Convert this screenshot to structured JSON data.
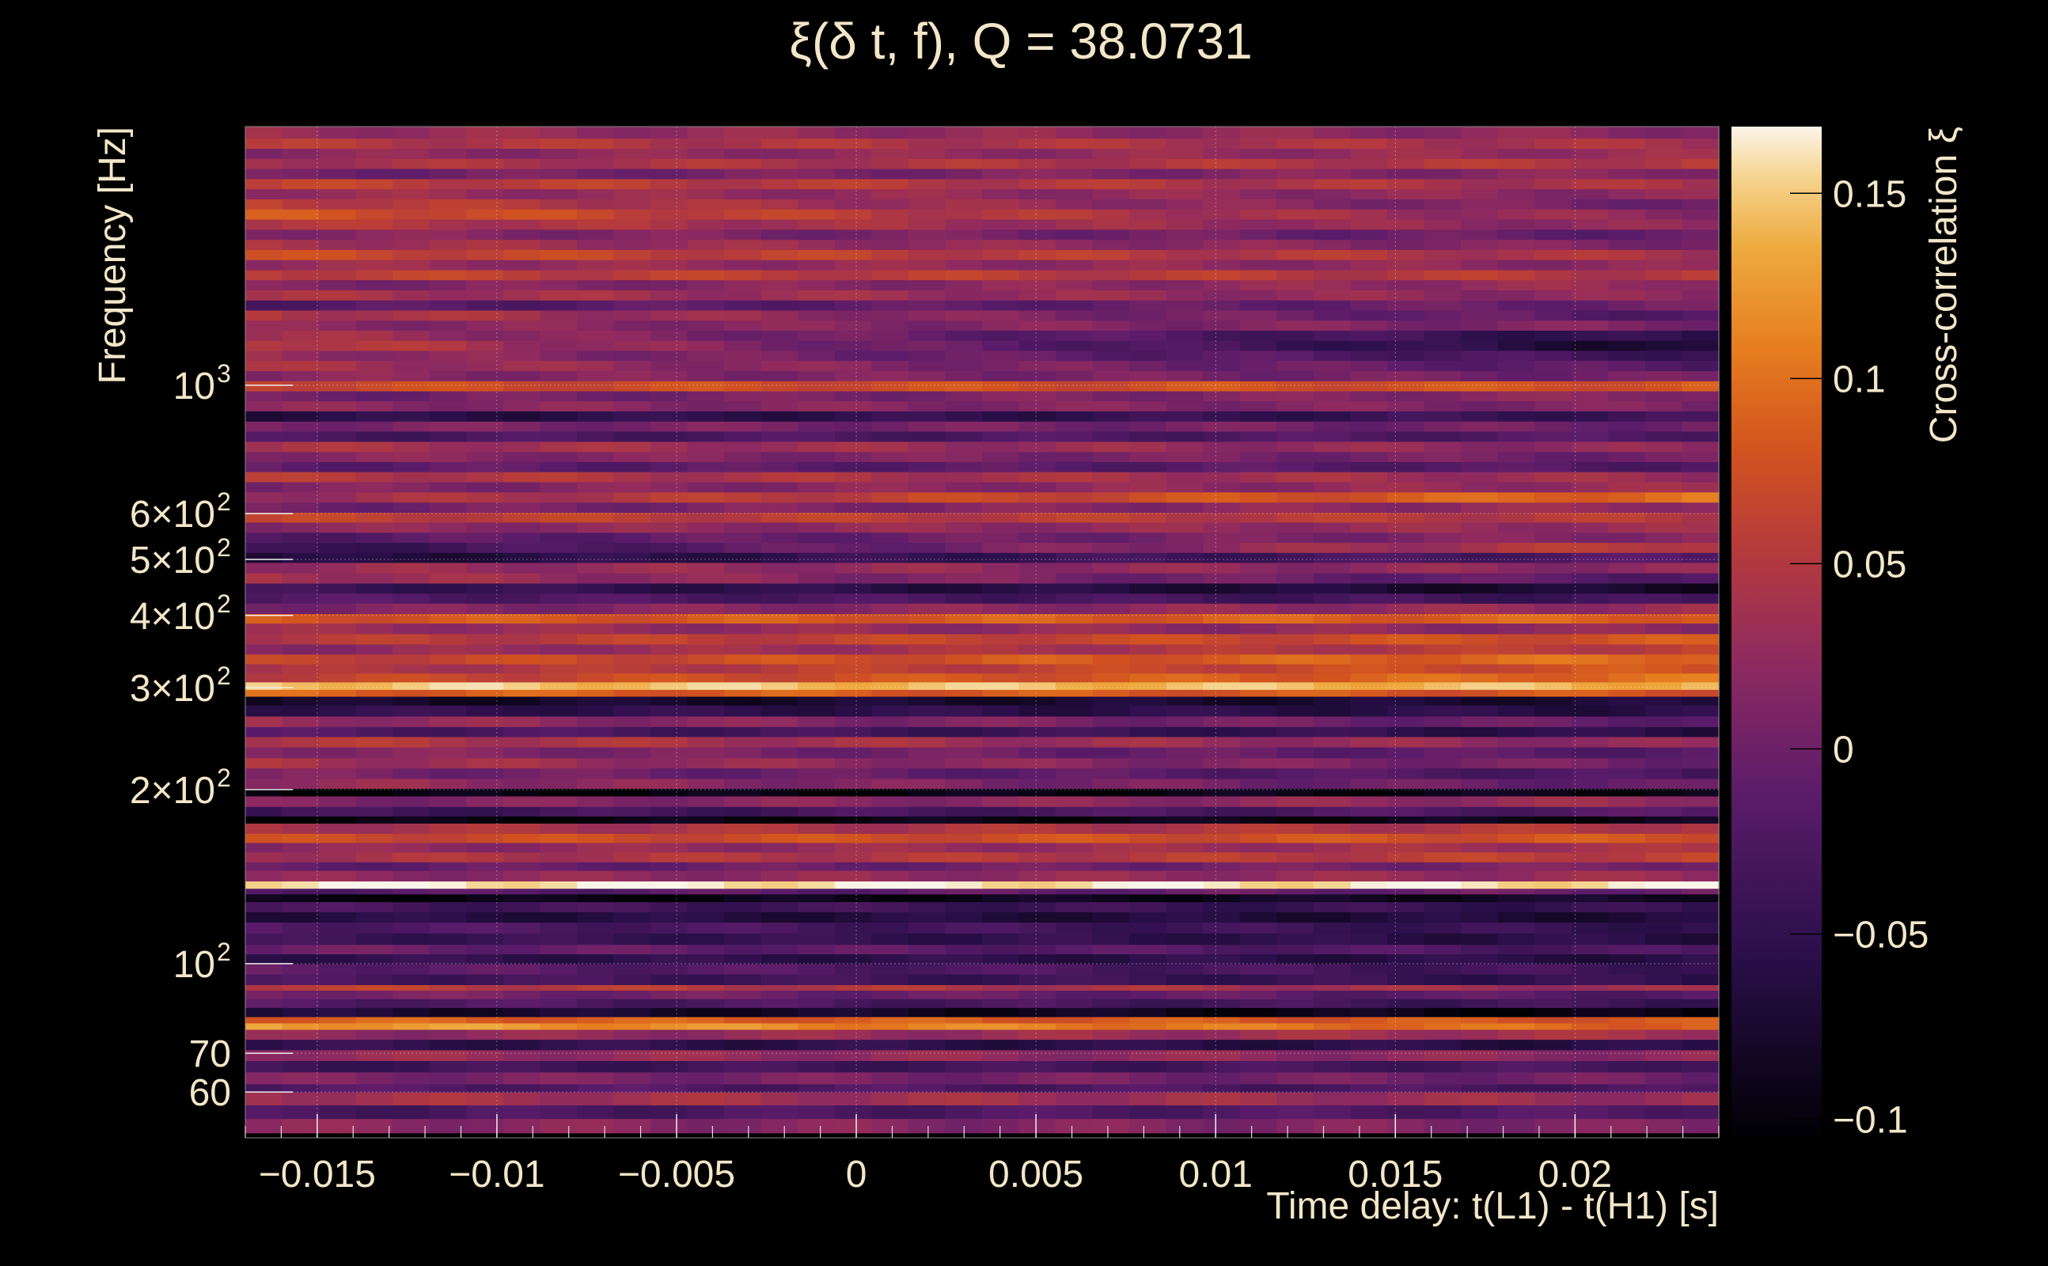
{
  "chart_data": {
    "type": "heatmap",
    "title": "ξ(δ t, f), Q = 38.0731",
    "xlabel": "Time delay: t(L1) - t(H1) [s]",
    "ylabel": "Frequency [Hz]",
    "colorbar_label": "Cross-correlation ξ",
    "xlim": [
      -0.017,
      0.024
    ],
    "ylim": [
      50,
      2800
    ],
    "y_scale": "log",
    "clim": [
      -0.105,
      0.168
    ],
    "colormap": "inferno",
    "grid": true,
    "x_ticks": [
      {
        "value": -0.015,
        "label": "−0.015"
      },
      {
        "value": -0.01,
        "label": "−0.01"
      },
      {
        "value": -0.005,
        "label": "−0.005"
      },
      {
        "value": 0,
        "label": "0"
      },
      {
        "value": 0.005,
        "label": "0.005"
      },
      {
        "value": 0.01,
        "label": "0.01"
      },
      {
        "value": 0.015,
        "label": "0.015"
      },
      {
        "value": 0.02,
        "label": "0.02"
      }
    ],
    "y_ticks": [
      {
        "value": 60,
        "base": "60",
        "exp": ""
      },
      {
        "value": 70,
        "base": "70",
        "exp": ""
      },
      {
        "value": 100,
        "base": "10",
        "exp": "2"
      },
      {
        "value": 200,
        "base": "2×10",
        "exp": "2"
      },
      {
        "value": 300,
        "base": "3×10",
        "exp": "2"
      },
      {
        "value": 400,
        "base": "4×10",
        "exp": "2"
      },
      {
        "value": 500,
        "base": "5×10",
        "exp": "2"
      },
      {
        "value": 600,
        "base": "6×10",
        "exp": "2"
      },
      {
        "value": 1000,
        "base": "10",
        "exp": "3"
      }
    ],
    "colorbar_ticks": [
      {
        "value": 0.15,
        "label": "0.15"
      },
      {
        "value": 0.1,
        "label": "0.1"
      },
      {
        "value": 0.05,
        "label": "0.05"
      },
      {
        "value": 0,
        "label": "0"
      },
      {
        "value": -0.05,
        "label": "−0.05"
      },
      {
        "value": -0.1,
        "label": "−0.1"
      }
    ],
    "bands": [
      {
        "f_low": 51,
        "f_high": 54,
        "xi_start": 0.02,
        "xi_end": 0.01
      },
      {
        "f_low": 54,
        "f_high": 57,
        "xi_start": -0.03,
        "xi_end": -0.02
      },
      {
        "f_low": 57,
        "f_high": 60,
        "xi_start": 0.04,
        "xi_end": 0.03
      },
      {
        "f_low": 60,
        "f_high": 62,
        "xi_start": -0.02,
        "xi_end": -0.03
      },
      {
        "f_low": 62,
        "f_high": 65,
        "xi_start": 0.01,
        "xi_end": 0.0
      },
      {
        "f_low": 65,
        "f_high": 68,
        "xi_start": -0.04,
        "xi_end": -0.03
      },
      {
        "f_low": 68,
        "f_high": 71,
        "xi_start": 0.03,
        "xi_end": 0.02
      },
      {
        "f_low": 71,
        "f_high": 74,
        "xi_start": -0.05,
        "xi_end": -0.06
      },
      {
        "f_low": 74,
        "f_high": 77,
        "xi_start": 0.02,
        "xi_end": 0.04
      },
      {
        "f_low": 77,
        "f_high": 79,
        "xi_start": 0.13,
        "xi_end": 0.09
      },
      {
        "f_low": 79,
        "f_high": 81,
        "xi_start": 0.09,
        "xi_end": 0.08
      },
      {
        "f_low": 81,
        "f_high": 84,
        "xi_start": -0.07,
        "xi_end": -0.1
      },
      {
        "f_low": 84,
        "f_high": 87,
        "xi_start": -0.02,
        "xi_end": -0.04
      },
      {
        "f_low": 87,
        "f_high": 90,
        "xi_start": 0.01,
        "xi_end": -0.02
      },
      {
        "f_low": 90,
        "f_high": 92,
        "xi_start": 0.06,
        "xi_end": 0.03
      },
      {
        "f_low": 92,
        "f_high": 96,
        "xi_start": -0.03,
        "xi_end": -0.05
      },
      {
        "f_low": 96,
        "f_high": 100,
        "xi_start": -0.01,
        "xi_end": -0.04
      },
      {
        "f_low": 100,
        "f_high": 104,
        "xi_start": -0.05,
        "xi_end": -0.06
      },
      {
        "f_low": 104,
        "f_high": 108,
        "xi_start": 0.0,
        "xi_end": -0.03
      },
      {
        "f_low": 108,
        "f_high": 113,
        "xi_start": -0.04,
        "xi_end": -0.06
      },
      {
        "f_low": 113,
        "f_high": 118,
        "xi_start": -0.02,
        "xi_end": -0.05
      },
      {
        "f_low": 118,
        "f_high": 123,
        "xi_start": -0.06,
        "xi_end": -0.07
      },
      {
        "f_low": 123,
        "f_high": 128,
        "xi_start": -0.03,
        "xi_end": -0.05
      },
      {
        "f_low": 128,
        "f_high": 132,
        "xi_start": -0.1,
        "xi_end": -0.08
      },
      {
        "f_low": 132,
        "f_high": 135,
        "xi_start": -0.02,
        "xi_end": 0.0
      },
      {
        "f_low": 135,
        "f_high": 139,
        "xi_start": 0.165,
        "xi_end": 0.16
      },
      {
        "f_low": 139,
        "f_high": 145,
        "xi_start": 0.02,
        "xi_end": 0.03
      },
      {
        "f_low": 145,
        "f_high": 150,
        "xi_start": -0.01,
        "xi_end": 0.01
      },
      {
        "f_low": 150,
        "f_high": 156,
        "xi_start": 0.04,
        "xi_end": 0.06
      },
      {
        "f_low": 156,
        "f_high": 162,
        "xi_start": 0.02,
        "xi_end": 0.04
      },
      {
        "f_low": 162,
        "f_high": 168,
        "xi_start": 0.07,
        "xi_end": 0.08
      },
      {
        "f_low": 168,
        "f_high": 175,
        "xi_start": 0.04,
        "xi_end": 0.05
      },
      {
        "f_low": 175,
        "f_high": 180,
        "xi_start": -0.1,
        "xi_end": -0.09
      },
      {
        "f_low": 180,
        "f_high": 187,
        "xi_start": -0.04,
        "xi_end": -0.02
      },
      {
        "f_low": 187,
        "f_high": 195,
        "xi_start": 0.01,
        "xi_end": 0.03
      },
      {
        "f_low": 195,
        "f_high": 201,
        "xi_start": -0.1,
        "xi_end": -0.09
      },
      {
        "f_low": 201,
        "f_high": 209,
        "xi_start": 0.03,
        "xi_end": -0.01
      },
      {
        "f_low": 209,
        "f_high": 218,
        "xi_start": 0.01,
        "xi_end": -0.03
      },
      {
        "f_low": 218,
        "f_high": 227,
        "xi_start": 0.04,
        "xi_end": 0.0
      },
      {
        "f_low": 227,
        "f_high": 237,
        "xi_start": 0.02,
        "xi_end": -0.02
      },
      {
        "f_low": 237,
        "f_high": 247,
        "xi_start": 0.05,
        "xi_end": 0.02
      },
      {
        "f_low": 247,
        "f_high": 257,
        "xi_start": -0.02,
        "xi_end": -0.06
      },
      {
        "f_low": 257,
        "f_high": 268,
        "xi_start": 0.03,
        "xi_end": -0.01
      },
      {
        "f_low": 268,
        "f_high": 280,
        "xi_start": -0.05,
        "xi_end": -0.06
      },
      {
        "f_low": 280,
        "f_high": 290,
        "xi_start": -0.08,
        "xi_end": -0.07
      },
      {
        "f_low": 290,
        "f_high": 298,
        "xi_start": 0.09,
        "xi_end": 0.08
      },
      {
        "f_low": 298,
        "f_high": 307,
        "xi_start": 0.15,
        "xi_end": 0.14
      },
      {
        "f_low": 307,
        "f_high": 318,
        "xi_start": 0.06,
        "xi_end": 0.1
      },
      {
        "f_low": 318,
        "f_high": 330,
        "xi_start": 0.04,
        "xi_end": 0.08
      },
      {
        "f_low": 330,
        "f_high": 343,
        "xi_start": 0.06,
        "xi_end": 0.1
      },
      {
        "f_low": 343,
        "f_high": 357,
        "xi_start": 0.02,
        "xi_end": 0.06
      },
      {
        "f_low": 357,
        "f_high": 372,
        "xi_start": 0.05,
        "xi_end": 0.08
      },
      {
        "f_low": 372,
        "f_high": 388,
        "xi_start": 0.03,
        "xi_end": 0.02
      },
      {
        "f_low": 388,
        "f_high": 403,
        "xi_start": 0.08,
        "xi_end": 0.09
      },
      {
        "f_low": 403,
        "f_high": 420,
        "xi_start": 0.01,
        "xi_end": 0.03
      },
      {
        "f_low": 420,
        "f_high": 437,
        "xi_start": -0.02,
        "xi_end": -0.04
      },
      {
        "f_low": 437,
        "f_high": 455,
        "xi_start": -0.04,
        "xi_end": -0.08
      },
      {
        "f_low": 455,
        "f_high": 474,
        "xi_start": 0.04,
        "xi_end": -0.02
      },
      {
        "f_low": 474,
        "f_high": 494,
        "xi_start": 0.03,
        "xi_end": 0.02
      },
      {
        "f_low": 494,
        "f_high": 514,
        "xi_start": -0.07,
        "xi_end": -0.02
      },
      {
        "f_low": 514,
        "f_high": 535,
        "xi_start": -0.05,
        "xi_end": 0.06
      },
      {
        "f_low": 535,
        "f_high": 557,
        "xi_start": -0.02,
        "xi_end": 0.02
      },
      {
        "f_low": 557,
        "f_high": 580,
        "xi_start": 0.02,
        "xi_end": 0.03
      },
      {
        "f_low": 580,
        "f_high": 603,
        "xi_start": 0.06,
        "xi_end": 0.05
      },
      {
        "f_low": 603,
        "f_high": 628,
        "xi_start": 0.0,
        "xi_end": 0.03
      },
      {
        "f_low": 628,
        "f_high": 654,
        "xi_start": 0.03,
        "xi_end": 0.1
      },
      {
        "f_low": 654,
        "f_high": 681,
        "xi_start": 0.01,
        "xi_end": 0.03
      },
      {
        "f_low": 681,
        "f_high": 709,
        "xi_start": 0.05,
        "xi_end": 0.03
      },
      {
        "f_low": 709,
        "f_high": 738,
        "xi_start": -0.01,
        "xi_end": -0.02
      },
      {
        "f_low": 738,
        "f_high": 768,
        "xi_start": 0.02,
        "xi_end": 0.0
      },
      {
        "f_low": 768,
        "f_high": 800,
        "xi_start": 0.04,
        "xi_end": 0.02
      },
      {
        "f_low": 800,
        "f_high": 833,
        "xi_start": -0.03,
        "xi_end": -0.02
      },
      {
        "f_low": 833,
        "f_high": 867,
        "xi_start": 0.01,
        "xi_end": 0.0
      },
      {
        "f_low": 867,
        "f_high": 903,
        "xi_start": -0.06,
        "xi_end": -0.04
      },
      {
        "f_low": 903,
        "f_high": 940,
        "xi_start": 0.02,
        "xi_end": 0.01
      },
      {
        "f_low": 940,
        "f_high": 978,
        "xi_start": 0.0,
        "xi_end": 0.02
      },
      {
        "f_low": 978,
        "f_high": 1018,
        "xi_start": 0.07,
        "xi_end": 0.08
      },
      {
        "f_low": 1018,
        "f_high": 1060,
        "xi_start": 0.02,
        "xi_end": 0.0
      },
      {
        "f_low": 1060,
        "f_high": 1104,
        "xi_start": 0.04,
        "xi_end": -0.02
      },
      {
        "f_low": 1104,
        "f_high": 1149,
        "xi_start": 0.03,
        "xi_end": -0.04
      },
      {
        "f_low": 1149,
        "f_high": 1196,
        "xi_start": 0.06,
        "xi_end": -0.08
      },
      {
        "f_low": 1196,
        "f_high": 1245,
        "xi_start": 0.04,
        "xi_end": -0.06
      },
      {
        "f_low": 1245,
        "f_high": 1296,
        "xi_start": 0.02,
        "xi_end": 0.01
      },
      {
        "f_low": 1296,
        "f_high": 1349,
        "xi_start": 0.05,
        "xi_end": -0.02
      },
      {
        "f_low": 1349,
        "f_high": 1404,
        "xi_start": -0.02,
        "xi_end": 0.0
      },
      {
        "f_low": 1404,
        "f_high": 1462,
        "xi_start": 0.04,
        "xi_end": 0.02
      },
      {
        "f_low": 1462,
        "f_high": 1522,
        "xi_start": 0.01,
        "xi_end": 0.03
      },
      {
        "f_low": 1522,
        "f_high": 1584,
        "xi_start": 0.06,
        "xi_end": 0.05
      },
      {
        "f_low": 1584,
        "f_high": 1649,
        "xi_start": 0.03,
        "xi_end": 0.02
      },
      {
        "f_low": 1649,
        "f_high": 1717,
        "xi_start": 0.07,
        "xi_end": 0.04
      },
      {
        "f_low": 1717,
        "f_high": 1787,
        "xi_start": 0.04,
        "xi_end": 0.01
      },
      {
        "f_low": 1787,
        "f_high": 1861,
        "xi_start": 0.02,
        "xi_end": -0.01
      },
      {
        "f_low": 1861,
        "f_high": 1937,
        "xi_start": 0.05,
        "xi_end": 0.02
      },
      {
        "f_low": 1937,
        "f_high": 2017,
        "xi_start": 0.08,
        "xi_end": 0.02
      },
      {
        "f_low": 2017,
        "f_high": 2100,
        "xi_start": 0.06,
        "xi_end": 0.0
      },
      {
        "f_low": 2100,
        "f_high": 2186,
        "xi_start": 0.03,
        "xi_end": 0.02
      },
      {
        "f_low": 2186,
        "f_high": 2276,
        "xi_start": 0.06,
        "xi_end": 0.04
      },
      {
        "f_low": 2276,
        "f_high": 2370,
        "xi_start": 0.0,
        "xi_end": 0.02
      },
      {
        "f_low": 2370,
        "f_high": 2467,
        "xi_start": 0.04,
        "xi_end": 0.05
      },
      {
        "f_low": 2467,
        "f_high": 2568,
        "xi_start": 0.02,
        "xi_end": 0.03
      },
      {
        "f_low": 2568,
        "f_high": 2674,
        "xi_start": 0.05,
        "xi_end": 0.04
      },
      {
        "f_low": 2674,
        "f_high": 2800,
        "xi_start": 0.03,
        "xi_end": 0.02
      }
    ]
  }
}
